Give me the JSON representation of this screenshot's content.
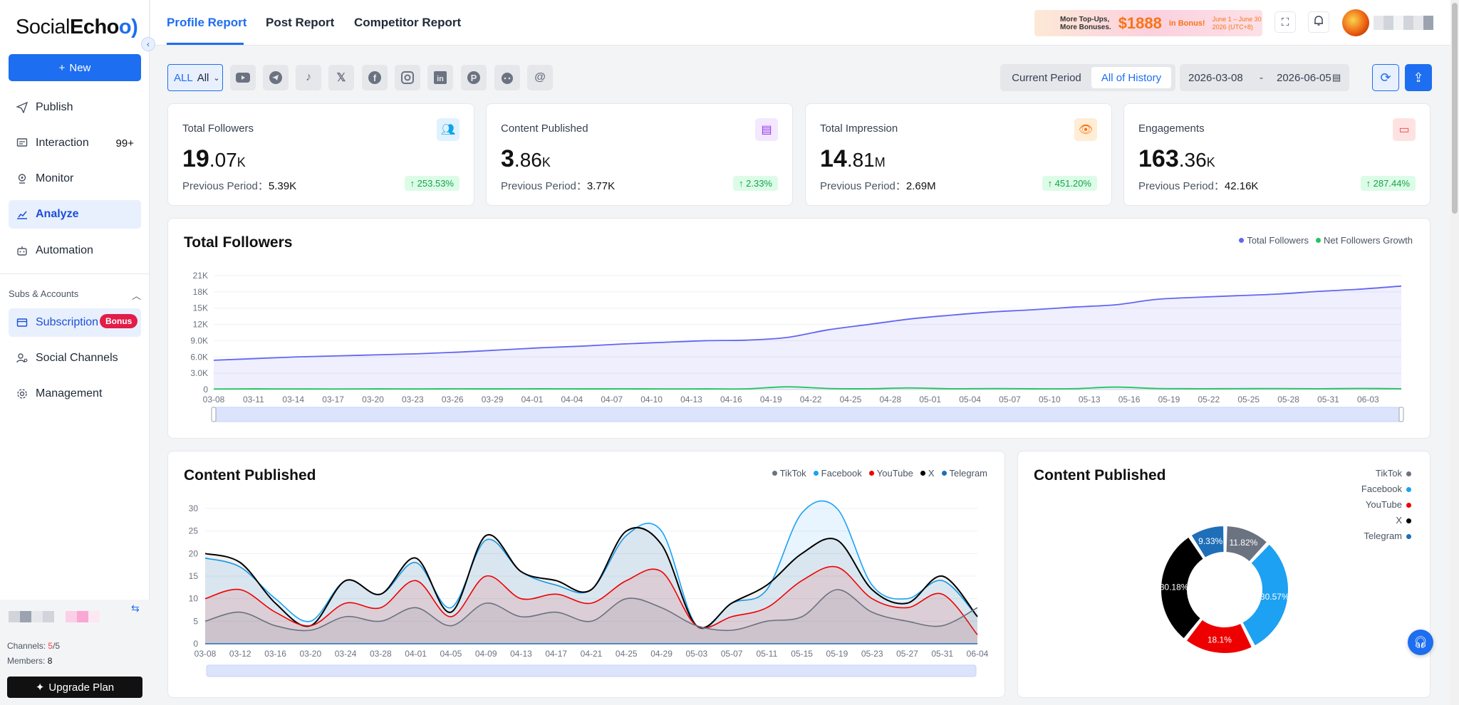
{
  "app": {
    "logo_social": "Social",
    "logo_echo": "Echo",
    "new_button": "New"
  },
  "sidebar": {
    "items": [
      {
        "label": "Publish",
        "icon": "send-icon"
      },
      {
        "label": "Interaction",
        "icon": "chat-icon",
        "badge": "99+"
      },
      {
        "label": "Monitor",
        "icon": "location-icon"
      },
      {
        "label": "Analyze",
        "icon": "chart-icon",
        "active": true
      },
      {
        "label": "Automation",
        "icon": "robot-icon"
      }
    ],
    "section_label": "Subs & Accounts",
    "section_items": [
      {
        "label": "Subscription",
        "icon": "card-icon",
        "active": true,
        "badge": "Bonus"
      },
      {
        "label": "Social Channels",
        "icon": "user-gear-icon"
      },
      {
        "label": "Management",
        "icon": "gear-icon"
      }
    ],
    "account": {
      "channels_label": "Channels:",
      "channels_used": "5",
      "channels_total": "/5",
      "members_label": "Members:",
      "members_value": "8"
    },
    "upgrade_button": "Upgrade Plan"
  },
  "header": {
    "tabs": [
      {
        "label": "Profile Report",
        "active": true
      },
      {
        "label": "Post Report"
      },
      {
        "label": "Competitor Report"
      }
    ],
    "promo": {
      "line1": "More Top-Ups,",
      "line2": "More Bonuses.",
      "amount": "$1888",
      "suffix": "in Bonus!",
      "dates": "June 1 – June 30",
      "year": "2026 (UTC+8)"
    }
  },
  "filters": {
    "all_label": "ALL",
    "selected": "All",
    "platforms": [
      "youtube-icon",
      "telegram-icon",
      "tiktok-icon",
      "x-icon",
      "facebook-icon",
      "instagram-icon",
      "linkedin-icon",
      "pinterest-icon",
      "reddit-icon",
      "threads-icon"
    ],
    "period_options": [
      "Current Period",
      "All of History"
    ],
    "period_active": "All of History",
    "date_start": "2026-03-08",
    "date_sep": "-",
    "date_end": "2026-06-05"
  },
  "stats": [
    {
      "title": "Total Followers",
      "int": "19",
      "dec": ".07",
      "unit": "K",
      "prev_label": "Previous Period：",
      "prev": "5.39K",
      "change": "↑ 253.53%",
      "icon": "users-icon",
      "color": "#0ea5e9",
      "bg": "#e0f2fe"
    },
    {
      "title": "Content Published",
      "int": "3",
      "dec": ".86",
      "unit": "K",
      "prev_label": "Previous Period：",
      "prev": "3.77K",
      "change": "↑ 2.33%",
      "icon": "document-icon",
      "color": "#9333ea",
      "bg": "#f3e8ff"
    },
    {
      "title": "Total Impression",
      "int": "14",
      "dec": ".81",
      "unit": "M",
      "prev_label": "Previous Period：",
      "prev": "2.69M",
      "change": "↑ 451.20%",
      "icon": "eye-icon",
      "color": "#f97316",
      "bg": "#ffedd5"
    },
    {
      "title": "Engagements",
      "int": "163",
      "dec": ".36",
      "unit": "K",
      "prev_label": "Previous Period：",
      "prev": "42.16K",
      "change": "↑ 287.44%",
      "icon": "message-icon",
      "color": "#ef4444",
      "bg": "#fee2e2"
    }
  ],
  "chart_data": [
    {
      "type": "area",
      "title": "Total Followers",
      "ylim": [
        0,
        21000
      ],
      "y_ticks": [
        "0",
        "3.0K",
        "6.0K",
        "9.0K",
        "12K",
        "15K",
        "18K",
        "21K"
      ],
      "x_ticks": [
        "03-08",
        "03-11",
        "03-14",
        "03-17",
        "03-20",
        "03-23",
        "03-26",
        "03-29",
        "04-01",
        "04-04",
        "04-07",
        "04-10",
        "04-13",
        "04-16",
        "04-19",
        "04-22",
        "04-25",
        "04-28",
        "05-01",
        "05-04",
        "05-07",
        "05-10",
        "05-13",
        "05-16",
        "05-19",
        "05-22",
        "05-25",
        "05-28",
        "05-31",
        "06-03"
      ],
      "legend": "top-right",
      "series": [
        {
          "name": "Total Followers",
          "color": "#6366f1",
          "values": [
            5400,
            5700,
            6000,
            6200,
            6400,
            6600,
            6900,
            7300,
            7700,
            8000,
            8400,
            8700,
            9000,
            9100,
            9600,
            11000,
            12000,
            13000,
            13700,
            14300,
            14700,
            15200,
            15600,
            16600,
            17000,
            17300,
            17600,
            18100,
            18500,
            19070
          ]
        },
        {
          "name": "Net Followers Growth",
          "color": "#22c55e",
          "values": [
            100,
            120,
            110,
            100,
            120,
            110,
            130,
            120,
            140,
            120,
            130,
            110,
            120,
            130,
            500,
            200,
            150,
            300,
            150,
            180,
            140,
            160,
            450,
            200,
            150,
            160,
            180,
            150,
            200,
            150
          ]
        }
      ]
    },
    {
      "type": "area",
      "title": "Content Published",
      "ylim": [
        0,
        30
      ],
      "y_ticks": [
        "0",
        "5",
        "10",
        "15",
        "20",
        "25",
        "30"
      ],
      "x_ticks": [
        "03-08",
        "03-12",
        "03-16",
        "03-20",
        "03-24",
        "03-28",
        "04-01",
        "04-05",
        "04-09",
        "04-13",
        "04-17",
        "04-21",
        "04-25",
        "04-29",
        "05-03",
        "05-07",
        "05-11",
        "05-15",
        "05-19",
        "05-23",
        "05-27",
        "05-31",
        "06-04"
      ],
      "legend": "top-right",
      "series": [
        {
          "name": "TikTok",
          "color": "#6b7280",
          "values": [
            5,
            7,
            4,
            3,
            6,
            5,
            8,
            4,
            9,
            6,
            7,
            5,
            10,
            8,
            4,
            3,
            5,
            6,
            12,
            7,
            5,
            4,
            8
          ]
        },
        {
          "name": "Facebook",
          "color": "#1da1f2",
          "values": [
            19,
            17,
            10,
            5,
            14,
            11,
            18,
            8,
            23,
            16,
            13,
            12,
            24,
            25,
            4,
            9,
            12,
            29,
            30,
            13,
            10,
            14,
            6
          ]
        },
        {
          "name": "YouTube",
          "color": "#ef0000",
          "values": [
            10,
            12,
            7,
            4,
            9,
            8,
            14,
            6,
            15,
            10,
            11,
            9,
            14,
            16,
            4,
            6,
            8,
            14,
            17,
            10,
            8,
            11,
            2
          ]
        },
        {
          "name": "X",
          "color": "#000000",
          "values": [
            20,
            18,
            9,
            4,
            14,
            11,
            19,
            7,
            24,
            16,
            14,
            12,
            25,
            22,
            4,
            9,
            13,
            20,
            23,
            12,
            9,
            15,
            6
          ]
        },
        {
          "name": "Telegram",
          "color": "#1e6fb8",
          "values": [
            0,
            0,
            0,
            0,
            0,
            0,
            0,
            0,
            0,
            0,
            0,
            0,
            0,
            0,
            0,
            0,
            0,
            0,
            0,
            0,
            0,
            0,
            0
          ]
        }
      ]
    },
    {
      "type": "pie",
      "title": "Content Published",
      "legend": "top-right",
      "series": [
        {
          "name": "TikTok",
          "value": 11.82,
          "label": "11.82%",
          "color": "#6b7280"
        },
        {
          "name": "Facebook",
          "value": 30.57,
          "label": "30.57%",
          "color": "#1da1f2"
        },
        {
          "name": "YouTube",
          "value": 18.1,
          "label": "18.1%",
          "color": "#ef0000"
        },
        {
          "name": "X",
          "value": 30.18,
          "label": "30.18%",
          "color": "#000000"
        },
        {
          "name": "Telegram",
          "value": 9.33,
          "label": "9.33%",
          "color": "#1e6fb8"
        }
      ]
    }
  ]
}
